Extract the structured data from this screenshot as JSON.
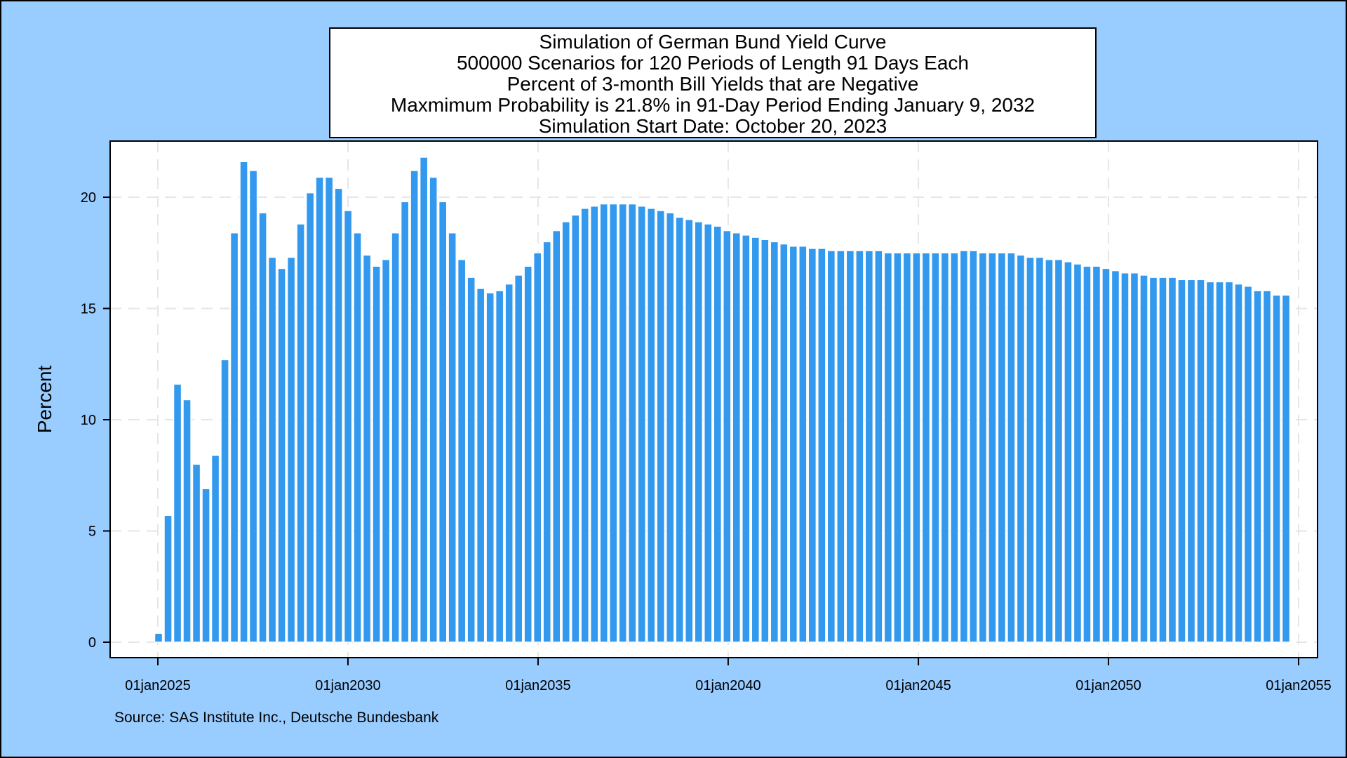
{
  "title_lines": [
    "Simulation of German Bund Yield Curve",
    "500000 Scenarios for 120 Periods of Length 91 Days Each",
    "Percent of 3-month Bill Yields that are Negative",
    "Maxmimum Probability is 21.8% in 91-Day Period Ending January 9, 2032",
    "Simulation Start Date: October 20, 2023"
  ],
  "source": "Source: SAS Institute Inc., Deutsche Bundesbank",
  "colors": {
    "bar": "#3399ee",
    "bar_edge": "#ffffff",
    "background": "#99ccff",
    "plot": "#ffffff",
    "grid": "#e6e6e6"
  },
  "chart_data": {
    "type": "bar",
    "title": "Simulation of German Bund Yield Curve",
    "ylabel": "Percent",
    "xlabel": "",
    "ylim": [
      0,
      22
    ],
    "xlim": [
      "2023-10-20",
      "2055-01-01"
    ],
    "yticks": [
      0,
      5,
      10,
      15,
      20
    ],
    "xticks": [
      "01jan2025",
      "01jan2030",
      "01jan2035",
      "01jan2040",
      "01jan2045",
      "01jan2050",
      "01jan2055"
    ],
    "grid": true,
    "period_days": 91,
    "first_period_end": "2025-01-08",
    "values": [
      0.4,
      5.7,
      11.6,
      10.9,
      8.0,
      6.9,
      8.4,
      12.7,
      18.4,
      21.6,
      21.2,
      19.3,
      17.3,
      16.8,
      17.3,
      18.8,
      20.2,
      20.9,
      20.9,
      20.4,
      19.4,
      18.4,
      17.4,
      16.9,
      17.2,
      18.4,
      19.8,
      21.2,
      21.8,
      20.9,
      19.8,
      18.4,
      17.2,
      16.4,
      15.9,
      15.7,
      15.8,
      16.1,
      16.5,
      16.9,
      17.5,
      18.0,
      18.5,
      18.9,
      19.2,
      19.5,
      19.6,
      19.7,
      19.7,
      19.7,
      19.7,
      19.6,
      19.5,
      19.4,
      19.3,
      19.1,
      19.0,
      18.9,
      18.8,
      18.7,
      18.5,
      18.4,
      18.3,
      18.2,
      18.1,
      18.0,
      17.9,
      17.8,
      17.8,
      17.7,
      17.7,
      17.6,
      17.6,
      17.6,
      17.6,
      17.6,
      17.6,
      17.5,
      17.5,
      17.5,
      17.5,
      17.5,
      17.5,
      17.5,
      17.5,
      17.6,
      17.6,
      17.5,
      17.5,
      17.5,
      17.5,
      17.4,
      17.3,
      17.3,
      17.2,
      17.2,
      17.1,
      17.0,
      16.9,
      16.9,
      16.8,
      16.7,
      16.6,
      16.6,
      16.5,
      16.4,
      16.4,
      16.4,
      16.3,
      16.3,
      16.3,
      16.2,
      16.2,
      16.2,
      16.1,
      16.0,
      15.8,
      15.8,
      15.6,
      15.6
    ]
  }
}
